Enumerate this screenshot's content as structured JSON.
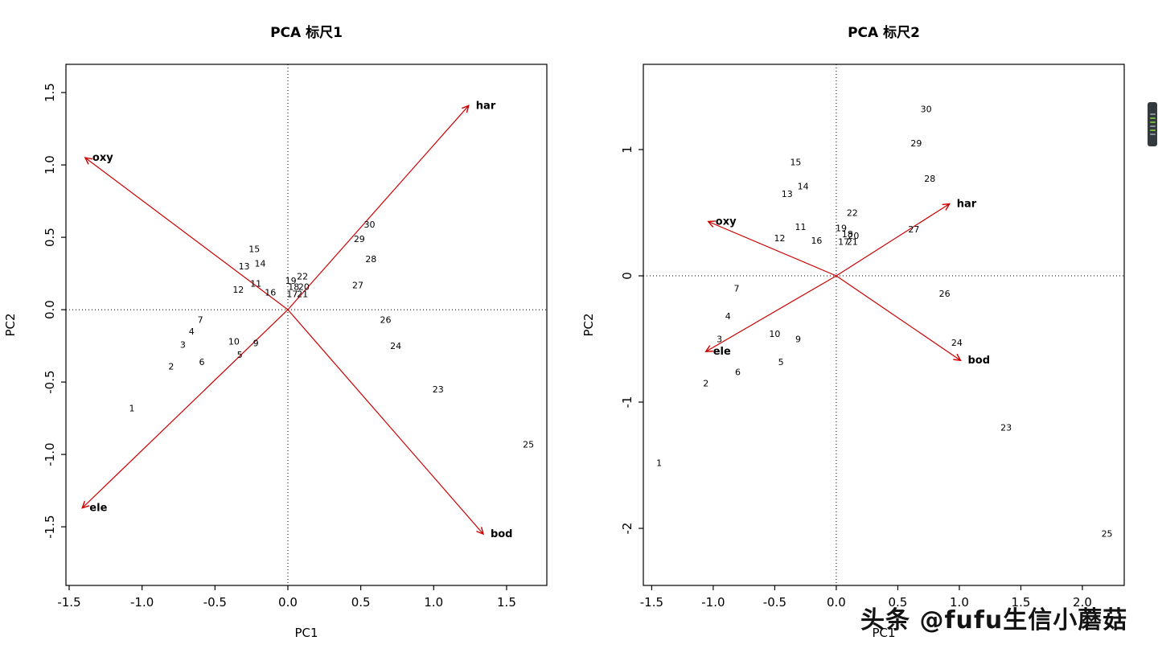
{
  "page": {
    "background": "#ffffff"
  },
  "watermark": {
    "text": "头条 @fufu生信小蘑菇",
    "color": "#141414"
  },
  "chart_data": [
    {
      "type": "scatter",
      "subtype": "pca-biplot",
      "title": "PCA 标尺1",
      "xlabel": "PC1",
      "ylabel": "PC2",
      "xlim": [
        -1.522,
        1.776
      ],
      "ylim": [
        -1.905,
        1.695
      ],
      "grid": false,
      "zero_lines": "dotted",
      "arrow_color": "#cc0000",
      "point_color": "#000000",
      "xticks": [
        {
          "v": -1.5,
          "label": "-1.5"
        },
        {
          "v": -1.0,
          "label": "-1.0"
        },
        {
          "v": -0.5,
          "label": "-0.5"
        },
        {
          "v": 0.0,
          "label": "0.0"
        },
        {
          "v": 0.5,
          "label": "0.5"
        },
        {
          "v": 1.0,
          "label": "1.0"
        },
        {
          "v": 1.5,
          "label": "1.5"
        }
      ],
      "yticks": [
        {
          "v": -1.5,
          "label": "-1.5"
        },
        {
          "v": -1.0,
          "label": "-1.0"
        },
        {
          "v": -0.5,
          "label": "-0.5"
        },
        {
          "v": 0.0,
          "label": "0.0"
        },
        {
          "v": 0.5,
          "label": "0.5"
        },
        {
          "v": 1.0,
          "label": "1.0"
        },
        {
          "v": 1.5,
          "label": "1.5"
        }
      ],
      "points": [
        {
          "label": "1",
          "x": -1.07,
          "y": -0.68
        },
        {
          "label": "2",
          "x": -0.8,
          "y": -0.39
        },
        {
          "label": "3",
          "x": -0.72,
          "y": -0.24
        },
        {
          "label": "4",
          "x": -0.66,
          "y": -0.15
        },
        {
          "label": "5",
          "x": -0.33,
          "y": -0.31
        },
        {
          "label": "6",
          "x": -0.59,
          "y": -0.36
        },
        {
          "label": "7",
          "x": -0.6,
          "y": -0.07
        },
        {
          "label": "9",
          "x": -0.22,
          "y": -0.23
        },
        {
          "label": "10",
          "x": -0.37,
          "y": -0.22
        },
        {
          "label": "11",
          "x": -0.22,
          "y": 0.18
        },
        {
          "label": "12",
          "x": -0.34,
          "y": 0.14
        },
        {
          "label": "13",
          "x": -0.3,
          "y": 0.3
        },
        {
          "label": "14",
          "x": -0.19,
          "y": 0.32
        },
        {
          "label": "15",
          "x": -0.23,
          "y": 0.42
        },
        {
          "label": "16",
          "x": -0.12,
          "y": 0.12
        },
        {
          "label": "17",
          "x": 0.03,
          "y": 0.11
        },
        {
          "label": "18",
          "x": 0.04,
          "y": 0.16
        },
        {
          "label": "19",
          "x": 0.02,
          "y": 0.2
        },
        {
          "label": "20",
          "x": 0.11,
          "y": 0.16
        },
        {
          "label": "21",
          "x": 0.1,
          "y": 0.11
        },
        {
          "label": "22",
          "x": 0.1,
          "y": 0.23
        },
        {
          "label": "23",
          "x": 1.03,
          "y": -0.55
        },
        {
          "label": "24",
          "x": 0.74,
          "y": -0.25
        },
        {
          "label": "25",
          "x": 1.65,
          "y": -0.93
        },
        {
          "label": "26",
          "x": 0.67,
          "y": -0.07
        },
        {
          "label": "27",
          "x": 0.48,
          "y": 0.17
        },
        {
          "label": "28",
          "x": 0.57,
          "y": 0.35
        },
        {
          "label": "29",
          "x": 0.49,
          "y": 0.49
        },
        {
          "label": "30",
          "x": 0.56,
          "y": 0.59
        }
      ],
      "arrows": [
        {
          "label": "oxy",
          "x": -1.39,
          "y": 1.05
        },
        {
          "label": "har",
          "x": 1.24,
          "y": 1.41
        },
        {
          "label": "ele",
          "x": -1.41,
          "y": -1.37
        },
        {
          "label": "bod",
          "x": 1.34,
          "y": -1.55
        }
      ]
    },
    {
      "type": "scatter",
      "subtype": "pca-biplot",
      "title": "PCA 标尺2",
      "xlabel": "PC1",
      "ylabel": "PC2",
      "xlim": [
        -1.568,
        2.34
      ],
      "ylim": [
        -2.452,
        1.675
      ],
      "grid": false,
      "zero_lines": "dotted",
      "arrow_color": "#cc0000",
      "point_color": "#000000",
      "xticks": [
        {
          "v": -1.5,
          "label": "-1.5"
        },
        {
          "v": -1.0,
          "label": "-1.0"
        },
        {
          "v": -0.5,
          "label": "-0.5"
        },
        {
          "v": 0.0,
          "label": "0.0"
        },
        {
          "v": 0.5,
          "label": "0.5"
        },
        {
          "v": 1.0,
          "label": "1.0"
        },
        {
          "v": 1.5,
          "label": "1.5"
        },
        {
          "v": 2.0,
          "label": "2.0"
        }
      ],
      "yticks": [
        {
          "v": -2,
          "label": "-2"
        },
        {
          "v": -1,
          "label": "-1"
        },
        {
          "v": 0,
          "label": "0"
        },
        {
          "v": 1,
          "label": "1"
        }
      ],
      "points": [
        {
          "label": "1",
          "x": -1.44,
          "y": -1.48
        },
        {
          "label": "2",
          "x": -1.06,
          "y": -0.85
        },
        {
          "label": "3",
          "x": -0.95,
          "y": -0.5
        },
        {
          "label": "4",
          "x": -0.88,
          "y": -0.32
        },
        {
          "label": "5",
          "x": -0.45,
          "y": -0.68
        },
        {
          "label": "6",
          "x": -0.8,
          "y": -0.76
        },
        {
          "label": "7",
          "x": -0.81,
          "y": -0.1
        },
        {
          "label": "9",
          "x": -0.31,
          "y": -0.5
        },
        {
          "label": "10",
          "x": -0.5,
          "y": -0.46
        },
        {
          "label": "11",
          "x": -0.29,
          "y": 0.39
        },
        {
          "label": "12",
          "x": -0.46,
          "y": 0.3
        },
        {
          "label": "13",
          "x": -0.4,
          "y": 0.65
        },
        {
          "label": "14",
          "x": -0.27,
          "y": 0.71
        },
        {
          "label": "15",
          "x": -0.33,
          "y": 0.9
        },
        {
          "label": "16",
          "x": -0.16,
          "y": 0.28
        },
        {
          "label": "17",
          "x": 0.06,
          "y": 0.27
        },
        {
          "label": "18",
          "x": 0.09,
          "y": 0.33
        },
        {
          "label": "19",
          "x": 0.04,
          "y": 0.38
        },
        {
          "label": "20",
          "x": 0.14,
          "y": 0.32
        },
        {
          "label": "21",
          "x": 0.13,
          "y": 0.27
        },
        {
          "label": "22",
          "x": 0.13,
          "y": 0.5
        },
        {
          "label": "23",
          "x": 1.38,
          "y": -1.2
        },
        {
          "label": "24",
          "x": 0.98,
          "y": -0.53
        },
        {
          "label": "25",
          "x": 2.2,
          "y": -2.04
        },
        {
          "label": "26",
          "x": 0.88,
          "y": -0.14
        },
        {
          "label": "27",
          "x": 0.63,
          "y": 0.37
        },
        {
          "label": "28",
          "x": 0.76,
          "y": 0.77
        },
        {
          "label": "29",
          "x": 0.65,
          "y": 1.05
        },
        {
          "label": "30",
          "x": 0.73,
          "y": 1.32
        }
      ],
      "arrows": [
        {
          "label": "oxy",
          "x": -1.04,
          "y": 0.43
        },
        {
          "label": "har",
          "x": 0.92,
          "y": 0.57
        },
        {
          "label": "ele",
          "x": -1.06,
          "y": -0.6
        },
        {
          "label": "bod",
          "x": 1.01,
          "y": -0.67
        }
      ]
    }
  ]
}
